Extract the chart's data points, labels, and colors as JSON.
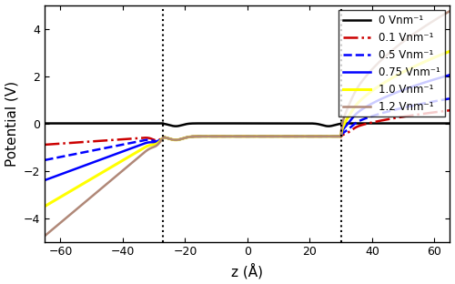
{
  "xlim": [
    -65,
    65
  ],
  "ylim": [
    -5,
    5
  ],
  "xlabel": "z (Å)",
  "ylabel": "Potential (V)",
  "vline1": -27,
  "vline2": 30,
  "series": [
    {
      "label": "0 Vnm⁻¹",
      "color": "black",
      "linestyle": "solid",
      "linewidth": 1.8,
      "field": 0.0,
      "water_V": 0.0,
      "left_end": 0.0,
      "right_end": 0.0
    },
    {
      "label": "0.1 Vnm⁻¹",
      "color": "#cc0000",
      "linestyle": "dashdot",
      "linewidth": 1.8,
      "field": 0.1,
      "water_V": -0.55,
      "left_end": -0.9,
      "right_end": 0.55
    },
    {
      "label": "0.5 Vnm⁻¹",
      "color": "blue",
      "linestyle": "dashed",
      "linewidth": 1.8,
      "field": 0.5,
      "water_V": -0.55,
      "left_end": -1.55,
      "right_end": 1.05
    },
    {
      "label": "0.75 Vnm⁻¹",
      "color": "blue",
      "linestyle": "solid",
      "linewidth": 1.8,
      "field": 0.75,
      "water_V": -0.55,
      "left_end": -2.4,
      "right_end": 2.05
    },
    {
      "label": "1.0 Vnm⁻¹",
      "color": "yellow",
      "linestyle": "solid",
      "linewidth": 2.2,
      "field": 1.0,
      "water_V": -0.55,
      "left_end": -3.5,
      "right_end": 3.05
    },
    {
      "label": "1.2 Vnm⁻¹",
      "color": "#b08878",
      "linestyle": "solid",
      "linewidth": 1.8,
      "field": 1.2,
      "water_V": -0.55,
      "left_end": -4.75,
      "right_end": 4.75
    }
  ],
  "xticks": [
    -60,
    -40,
    -20,
    0,
    20,
    40,
    60
  ],
  "yticks": [
    -4,
    -2,
    0,
    2,
    4
  ],
  "bg_color": "white",
  "legend_fontsize": 8.5,
  "axis_fontsize": 11,
  "tick_fontsize": 9
}
